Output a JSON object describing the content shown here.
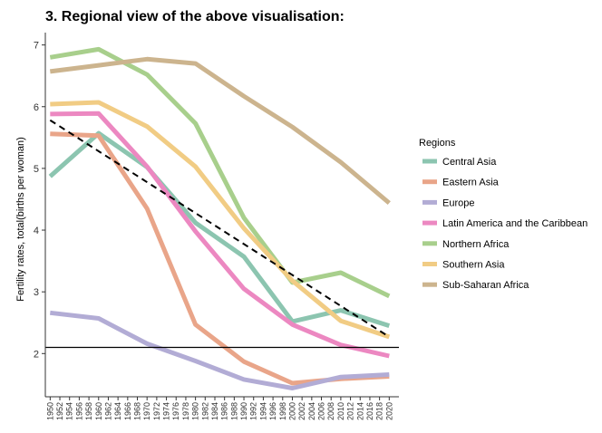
{
  "chart_data": {
    "type": "line",
    "title": "3. Regional view of the above visualisation:",
    "xlabel": "",
    "ylabel": "Fertility rates, total(births per woman)",
    "xlim": [
      1949,
      2022
    ],
    "ylim": [
      1.3,
      7.2
    ],
    "y_ticks": [
      2,
      3,
      4,
      5,
      6,
      7
    ],
    "x_ticks": [
      1950,
      1952,
      1954,
      1956,
      1958,
      1960,
      1962,
      1964,
      1966,
      1968,
      1970,
      1972,
      1974,
      1976,
      1978,
      1980,
      1982,
      1984,
      1986,
      1988,
      1990,
      1992,
      1994,
      1996,
      1998,
      2000,
      2002,
      2004,
      2006,
      2008,
      2010,
      2012,
      2014,
      2016,
      2018,
      2020
    ],
    "grid": false,
    "legend": {
      "title": "Regions",
      "placement": "right"
    },
    "x": [
      1950,
      1960,
      1970,
      1980,
      1990,
      2000,
      2010,
      2020
    ],
    "series": [
      {
        "name": "Central Asia",
        "color": "#8cc5b0",
        "values": [
          4.87,
          5.57,
          5.02,
          4.12,
          3.57,
          2.52,
          2.7,
          2.45
        ]
      },
      {
        "name": "Eastern Asia",
        "color": "#e9a589",
        "values": [
          5.56,
          5.53,
          4.35,
          2.47,
          1.87,
          1.52,
          1.59,
          1.63
        ]
      },
      {
        "name": "Europe",
        "color": "#b2acd5",
        "values": [
          2.66,
          2.57,
          2.16,
          1.88,
          1.58,
          1.44,
          1.62,
          1.66
        ]
      },
      {
        "name": "Latin America and the Caribbean",
        "color": "#ec88c1",
        "values": [
          5.88,
          5.89,
          5.03,
          3.98,
          3.05,
          2.47,
          2.14,
          1.96
        ]
      },
      {
        "name": "Northern Africa",
        "color": "#a8cf8c",
        "values": [
          6.8,
          6.93,
          6.52,
          5.73,
          4.2,
          3.15,
          3.31,
          2.93
        ]
      },
      {
        "name": "Southern Asia",
        "color": "#f1cc84",
        "values": [
          6.04,
          6.07,
          5.68,
          5.03,
          4.03,
          3.18,
          2.53,
          2.27
        ]
      },
      {
        "name": "Sub-Saharan Africa",
        "color": "#ccb48e",
        "values": [
          6.57,
          6.67,
          6.77,
          6.7,
          6.17,
          5.67,
          5.1,
          4.44
        ]
      }
    ],
    "trend_line": {
      "style": "dashed",
      "color": "#000000",
      "x": [
        1950,
        2020
      ],
      "values": [
        5.78,
        2.27
      ]
    },
    "reference_line": {
      "y": 2.1,
      "color": "#000000"
    }
  }
}
